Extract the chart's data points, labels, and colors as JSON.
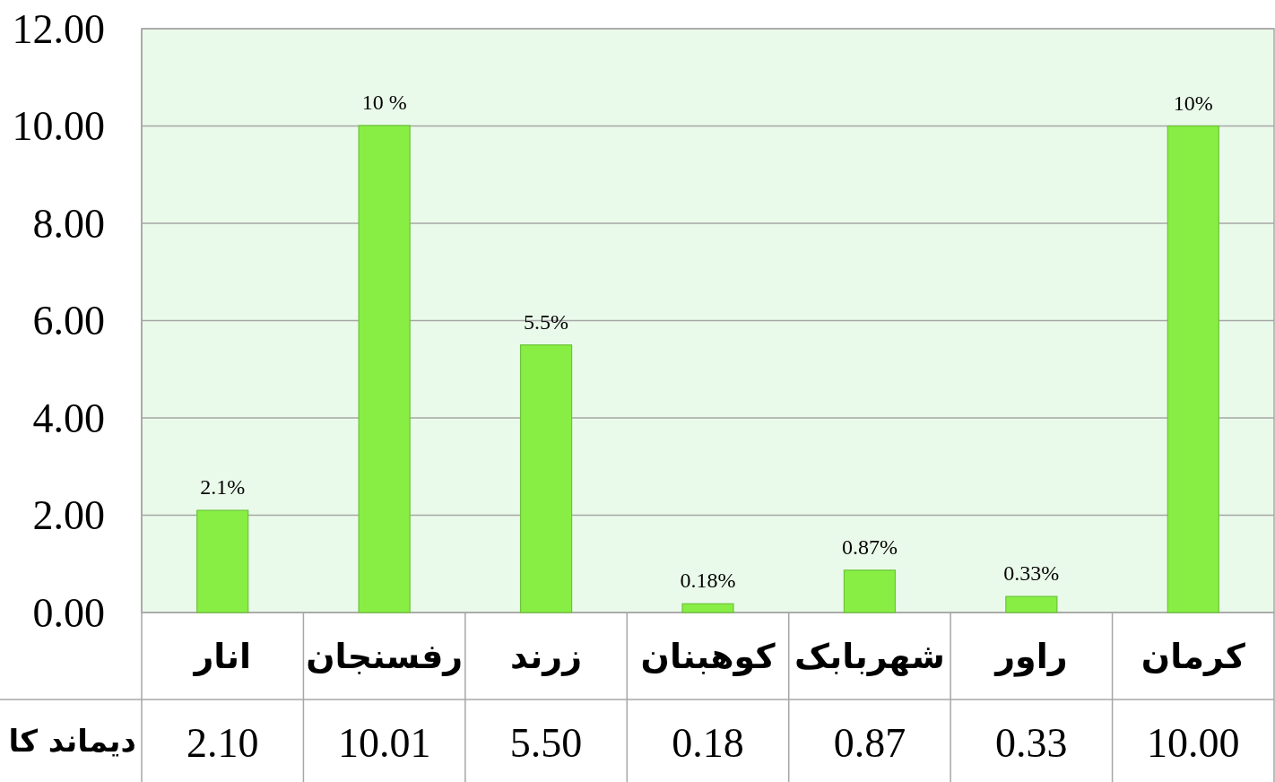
{
  "chart_data": {
    "type": "bar",
    "categories": [
      "انار",
      "رفسنجان",
      "زرند",
      "کوهبنان",
      "شهربابک",
      "راور",
      "کرمان"
    ],
    "values": [
      2.1,
      10.01,
      5.5,
      0.18,
      0.87,
      0.33,
      10.0
    ],
    "value_labels": [
      "2.10",
      "10.01",
      "5.50",
      "0.18",
      "0.87",
      "0.33",
      "10.00"
    ],
    "color": "#88ee44",
    "ylim": [
      0,
      12
    ],
    "yticks": [
      {
        "value": 0,
        "label": "0.00"
      },
      {
        "value": 2,
        "label": "2.00"
      },
      {
        "value": 4,
        "label": "4.00"
      },
      {
        "value": 6,
        "label": "6.00"
      },
      {
        "value": 8,
        "label": "8.00"
      },
      {
        "value": 10,
        "label": "10.00"
      },
      {
        "value": 12,
        "label": "12.00"
      }
    ],
    "grid": "y",
    "annotations": [
      {
        "text": "2.1%",
        "x": "انار",
        "y": 2.1
      },
      {
        "text": "10 %",
        "x": "رفسنجان",
        "y": 10.01
      },
      {
        "text": "5.5%",
        "x": "زرند",
        "y": 5.5
      },
      {
        "text": "0.18%",
        "x": "کوهبنان",
        "y": 0.18
      },
      {
        "text": "0.87%",
        "x": "شهربابک",
        "y": 0.87
      },
      {
        "text": "0.33%",
        "x": "راور",
        "y": 0.33
      },
      {
        "text": "10%",
        "x": "کرمان",
        "y": 10.0
      },
      "دیماند کا"
    ]
  }
}
